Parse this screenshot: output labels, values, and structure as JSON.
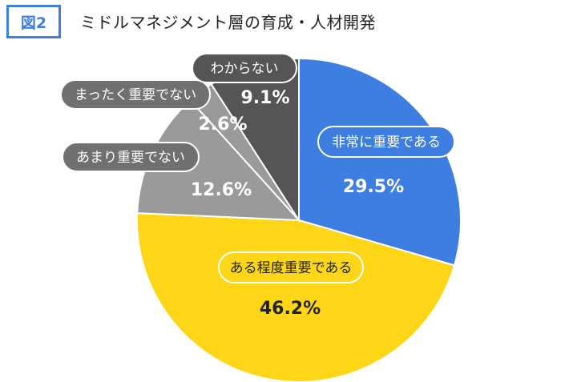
{
  "header": {
    "figure_label": "図2",
    "title": "ミドルマネジメント層の育成・人材開発"
  },
  "chart_data": {
    "type": "pie",
    "title": "ミドルマネジメント層の育成・人材開発",
    "start": "12 o'clock",
    "direction": "clockwise",
    "slices": [
      {
        "label": "非常に重要である",
        "value": 29.5,
        "display": "29.5%",
        "color": "#3d7ee0"
      },
      {
        "label": "ある程度重要である",
        "value": 46.2,
        "display": "46.2%",
        "color": "#fcd617"
      },
      {
        "label": "あまり重要でない",
        "value": 12.6,
        "display": "12.6%",
        "color": "#9a9a9a"
      },
      {
        "label": "まったく重要でない",
        "value": 2.6,
        "display": "2.6%",
        "color": "#9a9a9a"
      },
      {
        "label": "わからない",
        "value": 9.1,
        "display": "9.1%",
        "color": "#555555"
      }
    ]
  }
}
